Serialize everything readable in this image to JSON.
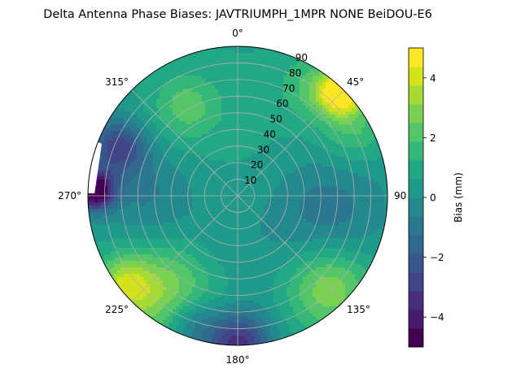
{
  "chart_data": {
    "type": "heatmap",
    "projection": "polar",
    "title": "Delta Antenna Phase Biases: JAVTRIUMPH_1MPR NONE BeiDOU-E6",
    "theta_direction": "clockwise",
    "theta_zero": "top",
    "theta_tick_labels": [
      "0°",
      "45°",
      "90",
      "135°",
      "180°",
      "225°",
      "270°",
      "315°"
    ],
    "theta_ticks_deg": [
      0,
      45,
      90,
      135,
      180,
      225,
      270,
      315
    ],
    "r_ticks": [
      10,
      20,
      30,
      40,
      50,
      60,
      70,
      80,
      90
    ],
    "r_range": [
      0,
      90
    ],
    "r_tick_labels": [
      "10",
      "20",
      "30",
      "40",
      "50",
      "60",
      "70",
      "80",
      "90"
    ],
    "grid": true,
    "colorbar": {
      "label": "Bias (mm)",
      "range": [
        -5,
        5
      ],
      "ticks": [
        -4,
        -2,
        0,
        2,
        4
      ],
      "tick_labels": [
        "−4",
        "−2",
        "0",
        "2",
        "4"
      ],
      "levels": [
        -5,
        -4.375,
        -3.75,
        -3.125,
        -2.5,
        -1.875,
        -1.25,
        -0.625,
        0,
        0.625,
        1.25,
        1.875,
        2.5,
        3.125,
        3.75,
        4.375,
        5
      ],
      "colormap": "viridis"
    },
    "field": {
      "base": 0.5,
      "blobs": [
        {
          "az": 45,
          "r": 88,
          "amp": 4.8,
          "w": 9
        },
        {
          "az": 35,
          "r": 80,
          "amp": 1.5,
          "w": 14
        },
        {
          "az": 60,
          "r": 80,
          "amp": 1.5,
          "w": 14
        },
        {
          "az": 215,
          "r": 72,
          "amp": 2.8,
          "w": 22
        },
        {
          "az": 232,
          "r": 87,
          "amp": 2.5,
          "w": 12
        },
        {
          "az": 135,
          "r": 78,
          "amp": 2.6,
          "w": 18
        },
        {
          "az": 330,
          "r": 62,
          "amp": 1.6,
          "w": 14
        },
        {
          "az": 272,
          "r": 86,
          "amp": -6.0,
          "w": 8
        },
        {
          "az": 292,
          "r": 78,
          "amp": -3.2,
          "w": 12
        },
        {
          "az": 180,
          "r": 90,
          "amp": -4.0,
          "w": 14
        },
        {
          "az": 200,
          "r": 82,
          "amp": -2.0,
          "w": 12
        },
        {
          "az": 100,
          "r": 55,
          "amp": -1.5,
          "w": 24
        },
        {
          "az": 270,
          "r": 55,
          "amp": -1.2,
          "w": 20
        },
        {
          "az": 200,
          "r": 40,
          "amp": -0.6,
          "w": 25
        },
        {
          "az": 0,
          "r": 45,
          "amp": 0.3,
          "w": 30
        }
      ]
    }
  }
}
